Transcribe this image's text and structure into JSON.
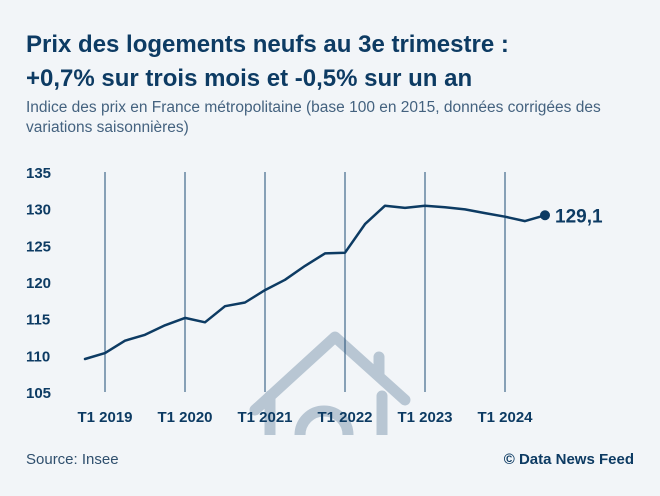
{
  "header": {
    "title_line1": "Prix des logements neufs au 3e trimestre :",
    "title_line2": "+0,7% sur trois mois et -0,5% sur un an",
    "subtitle": "Indice des prix en France métropolitaine (base 100 en 2015, données corrigées des variations saisonnières)"
  },
  "footer": {
    "source": "Source: Insee",
    "credit": "© Data News Feed"
  },
  "chart_data": {
    "type": "line",
    "icon": "house-icon",
    "ylim": [
      105,
      135
    ],
    "yticks": [
      105,
      110,
      115,
      120,
      125,
      130,
      135
    ],
    "xrange": [
      "2018-Q4",
      "2024-Q4"
    ],
    "xtick_labels": [
      "T1 2019",
      "T1 2020",
      "T1 2021",
      "T1 2022",
      "T1 2023",
      "T1 2024"
    ],
    "grid": "vertical lines at each T1",
    "line_color": "#0d3b63",
    "end_label": "129,1",
    "series": [
      {
        "x": [
          "2018-Q4",
          "2019-Q1",
          "2019-Q2",
          "2019-Q3",
          "2019-Q4",
          "2020-Q1",
          "2020-Q2",
          "2020-Q3",
          "2020-Q4",
          "2021-Q1",
          "2021-Q2",
          "2021-Q3",
          "2021-Q4",
          "2022-Q1",
          "2022-Q2",
          "2022-Q3",
          "2022-Q4",
          "2023-Q1",
          "2023-Q2",
          "2023-Q3",
          "2023-Q4",
          "2024-Q1",
          "2024-Q2",
          "2024-Q3"
        ],
        "values": [
          109.5,
          110.3,
          112.0,
          112.8,
          114.1,
          115.1,
          114.5,
          116.7,
          117.2,
          118.9,
          120.3,
          122.2,
          123.9,
          124.0,
          127.9,
          130.4,
          130.1,
          130.4,
          130.2,
          129.9,
          129.4,
          128.9,
          128.3,
          129.1
        ]
      }
    ]
  }
}
